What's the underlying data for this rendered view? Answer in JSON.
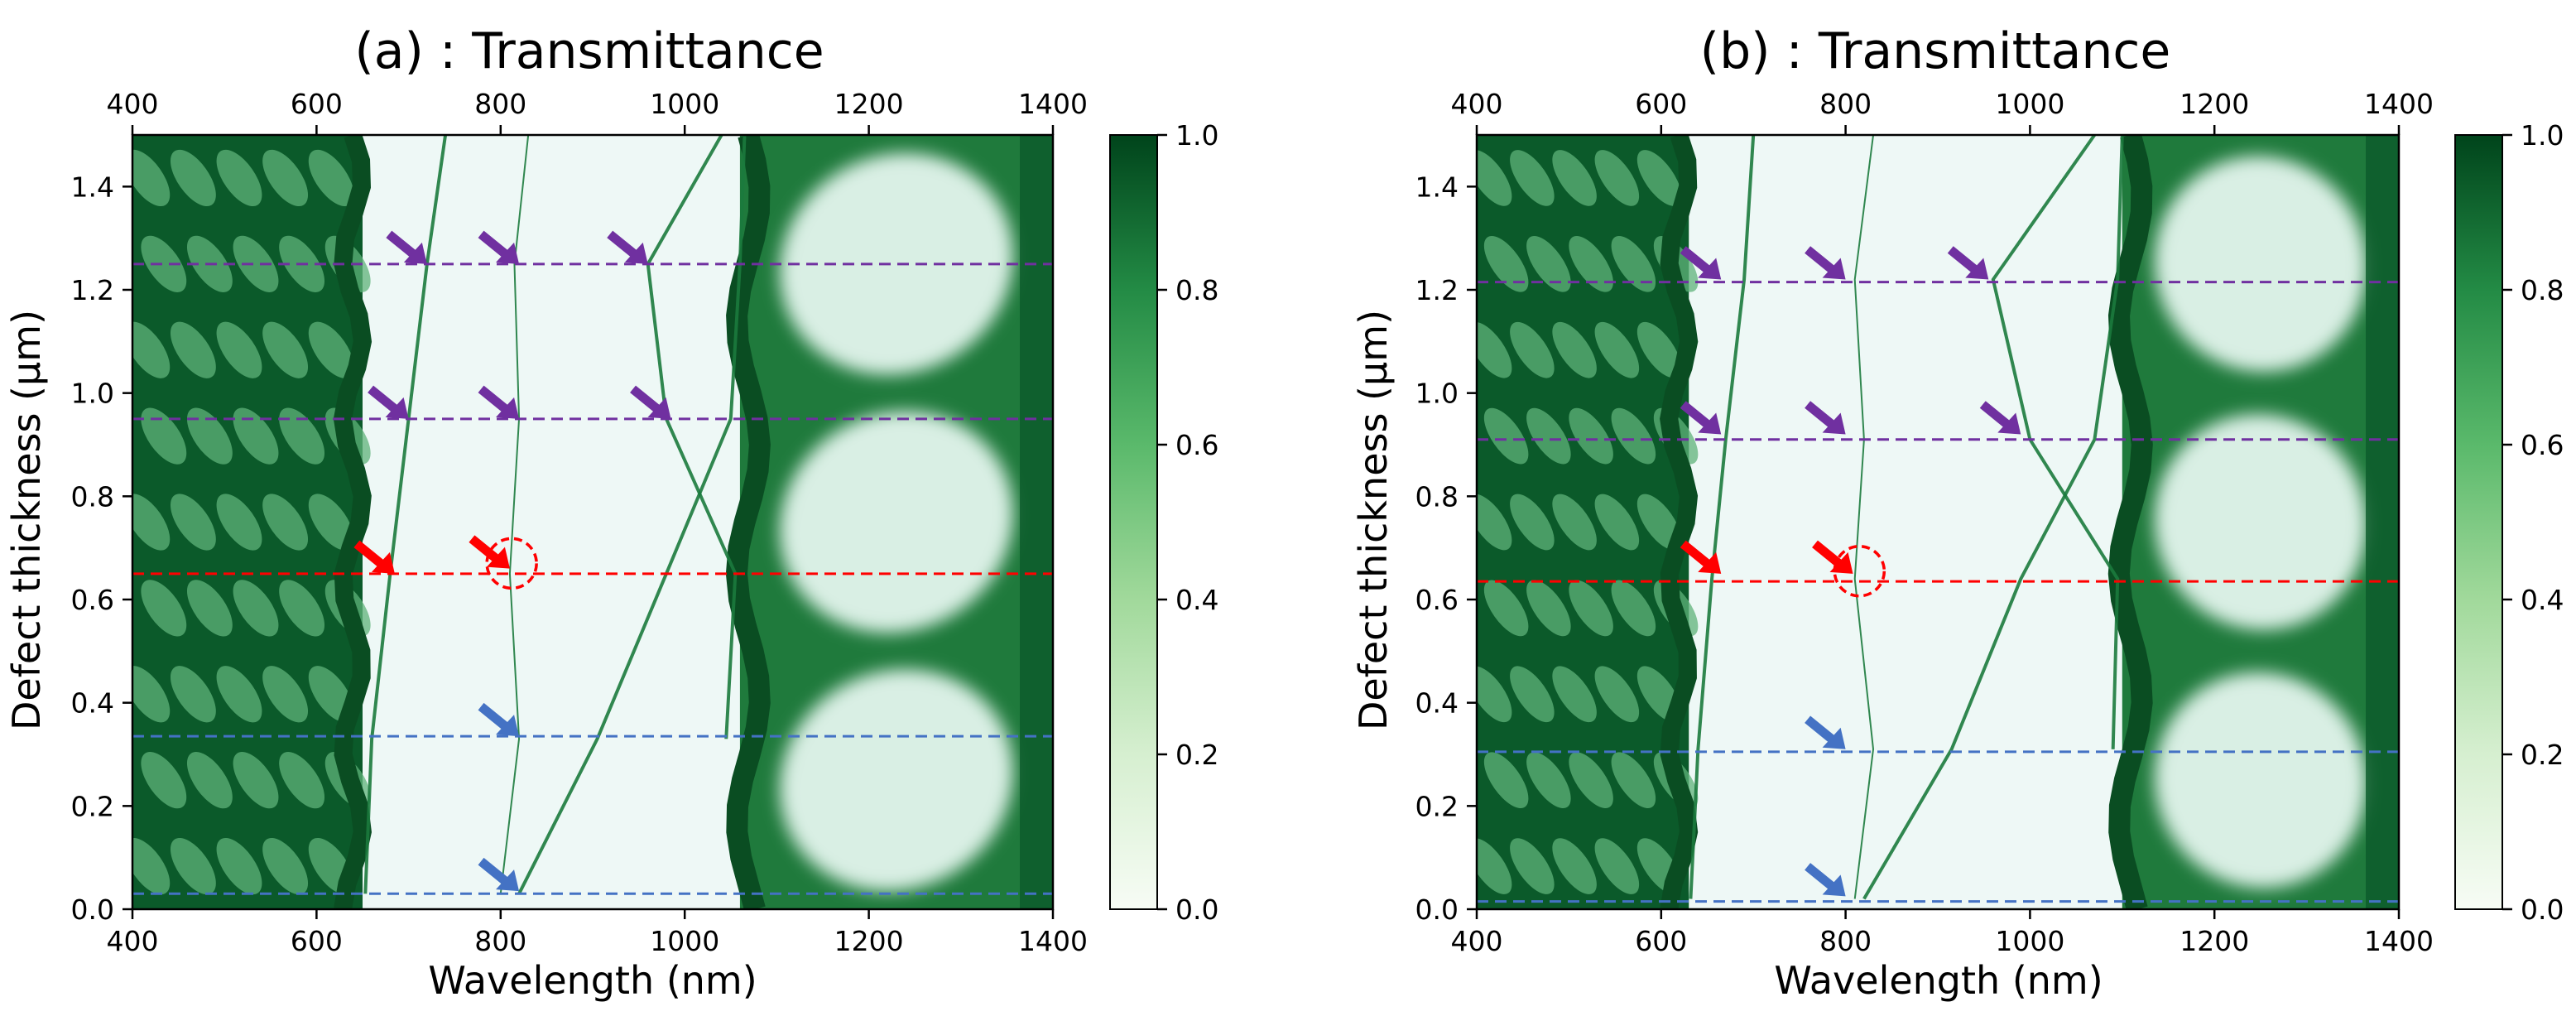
{
  "chart_data": [
    {
      "type": "heatmap",
      "title": "(a) : Transmittance",
      "xlabel": "Wavelength (nm)",
      "ylabel": "Defect thickness (μm)",
      "xlim": [
        400,
        1400
      ],
      "ylim": [
        0.0,
        1.5
      ],
      "xticks": [
        "400",
        "600",
        "800",
        "1000",
        "1200",
        "1400"
      ],
      "yticks": [
        "0.0",
        "0.2",
        "0.4",
        "0.6",
        "0.8",
        "1.0",
        "1.2",
        "1.4"
      ],
      "colorbar": {
        "min": 0.0,
        "max": 1.0,
        "ticks": [
          "0.0",
          "0.2",
          "0.4",
          "0.6",
          "0.8",
          "1.0"
        ],
        "cmap": "Greens"
      },
      "band_edges_nm": [
        650,
        1060
      ],
      "defect_modes": [
        {
          "y": [
            0.03,
            0.33,
            0.65,
            0.95,
            1.25,
            1.5
          ],
          "x": [
            653,
            660,
            680,
            700,
            720,
            740
          ]
        },
        {
          "y": [
            0.03,
            0.33,
            0.65,
            0.95,
            1.25,
            1.5
          ],
          "x": [
            800,
            820,
            810,
            820,
            815,
            830
          ]
        },
        {
          "y": [
            0.03,
            0.33,
            0.65,
            0.95,
            1.25,
            1.5
          ],
          "x": [
            820,
            905,
            980,
            1050,
            1060,
            1065
          ]
        },
        {
          "y": [
            0.33,
            0.65,
            0.95,
            1.25,
            1.5
          ],
          "x": [
            1045,
            1055,
            980,
            960,
            1040
          ]
        }
      ],
      "reference_lines": [
        {
          "y": 1.25,
          "color": "#7030a0"
        },
        {
          "y": 0.95,
          "color": "#7030a0"
        },
        {
          "y": 0.65,
          "color": "#ff0000"
        },
        {
          "y": 0.335,
          "color": "#4472c4"
        },
        {
          "y": 0.03,
          "color": "#4472c4"
        }
      ],
      "arrows": [
        {
          "x": 720,
          "y": 1.25,
          "color": "#7030a0"
        },
        {
          "x": 820,
          "y": 1.25,
          "color": "#7030a0"
        },
        {
          "x": 960,
          "y": 1.25,
          "color": "#7030a0"
        },
        {
          "x": 700,
          "y": 0.95,
          "color": "#7030a0"
        },
        {
          "x": 820,
          "y": 0.95,
          "color": "#7030a0"
        },
        {
          "x": 985,
          "y": 0.95,
          "color": "#7030a0"
        },
        {
          "x": 685,
          "y": 0.65,
          "color": "#ff0000"
        },
        {
          "x": 810,
          "y": 0.66,
          "color": "#ff0000"
        },
        {
          "x": 820,
          "y": 0.335,
          "color": "#4472c4"
        },
        {
          "x": 820,
          "y": 0.035,
          "color": "#4472c4"
        }
      ],
      "circle": {
        "x": 812,
        "y": 0.67,
        "color": "#ff0000"
      }
    },
    {
      "type": "heatmap",
      "title": "(b) : Transmittance",
      "xlabel": "Wavelength (nm)",
      "ylabel": "Defect thickness (μm)",
      "xlim": [
        400,
        1400
      ],
      "ylim": [
        0.0,
        1.5
      ],
      "xticks": [
        "400",
        "600",
        "800",
        "1000",
        "1200",
        "1400"
      ],
      "yticks": [
        "0.0",
        "0.2",
        "0.4",
        "0.6",
        "0.8",
        "1.0",
        "1.2",
        "1.4"
      ],
      "colorbar": {
        "min": 0.0,
        "max": 1.0,
        "ticks": [
          "0.0",
          "0.2",
          "0.4",
          "0.6",
          "0.8",
          "1.0"
        ],
        "cmap": "Greens"
      },
      "band_edges_nm": [
        630,
        1100
      ],
      "defect_modes": [
        {
          "y": [
            0.02,
            0.31,
            0.64,
            0.91,
            1.22,
            1.5
          ],
          "x": [
            632,
            640,
            655,
            670,
            690,
            700
          ]
        },
        {
          "y": [
            0.02,
            0.31,
            0.64,
            0.91,
            1.22,
            1.5
          ],
          "x": [
            810,
            830,
            810,
            820,
            810,
            830
          ]
        },
        {
          "y": [
            0.02,
            0.31,
            0.64,
            0.91,
            1.22,
            1.5
          ],
          "x": [
            820,
            915,
            990,
            1070,
            1095,
            1100
          ]
        },
        {
          "y": [
            0.31,
            0.64,
            0.91,
            1.22,
            1.5
          ],
          "x": [
            1090,
            1095,
            1000,
            960,
            1070
          ]
        }
      ],
      "reference_lines": [
        {
          "y": 1.215,
          "color": "#7030a0"
        },
        {
          "y": 0.91,
          "color": "#7030a0"
        },
        {
          "y": 0.635,
          "color": "#ff0000"
        },
        {
          "y": 0.305,
          "color": "#4472c4"
        },
        {
          "y": 0.015,
          "color": "#4472c4"
        }
      ],
      "arrows": [
        {
          "x": 665,
          "y": 1.22,
          "color": "#7030a0"
        },
        {
          "x": 800,
          "y": 1.22,
          "color": "#7030a0"
        },
        {
          "x": 955,
          "y": 1.22,
          "color": "#7030a0"
        },
        {
          "x": 665,
          "y": 0.92,
          "color": "#7030a0"
        },
        {
          "x": 800,
          "y": 0.92,
          "color": "#7030a0"
        },
        {
          "x": 990,
          "y": 0.92,
          "color": "#7030a0"
        },
        {
          "x": 665,
          "y": 0.65,
          "color": "#ff0000"
        },
        {
          "x": 808,
          "y": 0.65,
          "color": "#ff0000"
        },
        {
          "x": 800,
          "y": 0.31,
          "color": "#4472c4"
        },
        {
          "x": 800,
          "y": 0.025,
          "color": "#4472c4"
        }
      ],
      "circle": {
        "x": 815,
        "y": 0.655,
        "color": "#ff0000"
      }
    }
  ]
}
